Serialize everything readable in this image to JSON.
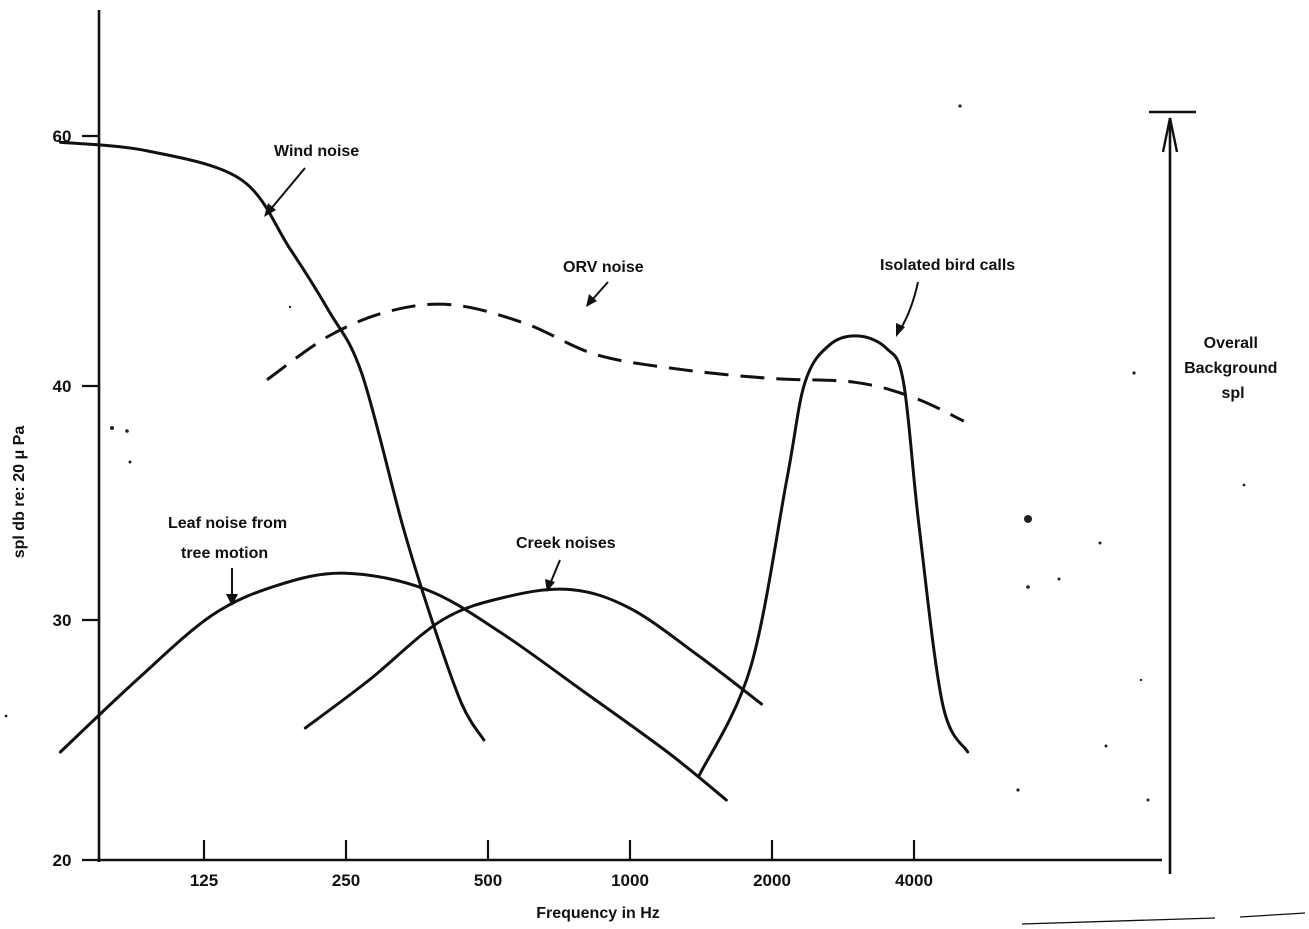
{
  "chart_data": {
    "type": "line",
    "title": "",
    "xlabel": "Frequency in Hz",
    "ylabel": "spl db re: 20 μ Pa",
    "x_scale": "log",
    "x_ticks": [
      "125",
      "250",
      "500",
      "1000",
      "2000",
      "4000"
    ],
    "y_ticks": [
      "20",
      "30",
      "40",
      "60"
    ],
    "ylim": [
      20,
      60
    ],
    "grid": false,
    "series": [
      {
        "name": "Wind noise",
        "style": "solid",
        "points": [
          [
            62,
            59.5
          ],
          [
            95,
            58.8
          ],
          [
            150,
            56.5
          ],
          [
            190,
            51
          ],
          [
            230,
            46
          ],
          [
            270,
            41
          ],
          [
            330,
            34
          ],
          [
            380,
            30
          ],
          [
            440,
            26.5
          ],
          [
            490,
            25
          ]
        ]
      },
      {
        "name": "ORV noise",
        "style": "dashed",
        "points": [
          [
            170,
            40.5
          ],
          [
            230,
            44
          ],
          [
            310,
            46
          ],
          [
            420,
            46.5
          ],
          [
            600,
            45
          ],
          [
            850,
            42.5
          ],
          [
            1300,
            41.3
          ],
          [
            2000,
            40.6
          ],
          [
            3000,
            40.3
          ],
          [
            4000,
            39.5
          ],
          [
            5100,
            38.5
          ]
        ]
      },
      {
        "name": "Isolated bird calls",
        "style": "solid",
        "points": [
          [
            1400,
            23.5
          ],
          [
            1800,
            28
          ],
          [
            2150,
            36
          ],
          [
            2350,
            40.3
          ],
          [
            2650,
            43.3
          ],
          [
            3050,
            44
          ],
          [
            3500,
            43
          ],
          [
            3800,
            40.3
          ],
          [
            4100,
            34
          ],
          [
            4600,
            26.5
          ],
          [
            5200,
            24.5
          ]
        ]
      },
      {
        "name": "Leaf noise from tree motion",
        "style": "solid",
        "points": [
          [
            62,
            24.5
          ],
          [
            90,
            27.5
          ],
          [
            130,
            30.2
          ],
          [
            180,
            31.5
          ],
          [
            250,
            32
          ],
          [
            370,
            31.3
          ],
          [
            530,
            29.5
          ],
          [
            800,
            27
          ],
          [
            1200,
            24.5
          ],
          [
            1600,
            22.5
          ]
        ]
      },
      {
        "name": "Creek noises",
        "style": "solid",
        "points": [
          [
            205,
            25.5
          ],
          [
            280,
            27.5
          ],
          [
            400,
            30
          ],
          [
            550,
            31
          ],
          [
            750,
            31.3
          ],
          [
            1000,
            30.5
          ],
          [
            1400,
            28.5
          ],
          [
            1900,
            26.5
          ]
        ]
      }
    ],
    "annotations": [
      "Wind noise",
      "ORV noise",
      "Isolated bird calls",
      "Leaf noise from tree motion",
      "Creek noises"
    ],
    "overall_label": [
      "Overall",
      "Background",
      "spl"
    ]
  }
}
